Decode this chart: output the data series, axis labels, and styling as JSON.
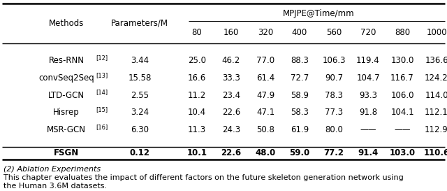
{
  "title": "MPJPE@Time/mm",
  "rows": [
    {
      "method": "Res-RNN",
      "superscript": "[12]",
      "params": "3.44",
      "values": [
        "25.0",
        "46.2",
        "77.0",
        "88.3",
        "106.3",
        "119.4",
        "130.0",
        "136.6"
      ],
      "bold": false
    },
    {
      "method": "convSeq2Seq",
      "superscript": "[13]",
      "params": "15.58",
      "values": [
        "16.6",
        "33.3",
        "61.4",
        "72.7",
        "90.7",
        "104.7",
        "116.7",
        "124.2"
      ],
      "bold": false
    },
    {
      "method": "LTD-GCN",
      "superscript": "[14]",
      "params": "2.55",
      "values": [
        "11.2",
        "23.4",
        "47.9",
        "58.9",
        "78.3",
        "93.3",
        "106.0",
        "114.0"
      ],
      "bold": false
    },
    {
      "method": "Hisrep",
      "superscript": "[15]",
      "params": "3.24",
      "values": [
        "10.4",
        "22.6",
        "47.1",
        "58.3",
        "77.3",
        "91.8",
        "104.1",
        "112.1"
      ],
      "bold": false
    },
    {
      "method": "MSR-GCN",
      "superscript": "[16]",
      "params": "6.30",
      "values": [
        "11.3",
        "24.3",
        "50.8",
        "61.9",
        "80.0",
        "——",
        "——",
        "112.9"
      ],
      "bold": false
    },
    {
      "method": "FSGN",
      "superscript": "",
      "params": "0.12",
      "values": [
        "10.1",
        "22.6",
        "48.0",
        "59.0",
        "77.2",
        "91.4",
        "103.0",
        "110.6"
      ],
      "bold": true
    }
  ],
  "caption_line1": "(2) Ablation Experiments",
  "caption_line2": "This chapter evaluates the impact of different factors on the future skeleton generation network using",
  "caption_line3": "the Human 3.6M datasets.",
  "bg_color": "#ffffff",
  "text_color": "#000000",
  "font_size": 8.5,
  "sup_font_size": 6.0,
  "time_labels": [
    "80",
    "160",
    "320",
    "400",
    "560",
    "720",
    "880",
    "1000"
  ]
}
